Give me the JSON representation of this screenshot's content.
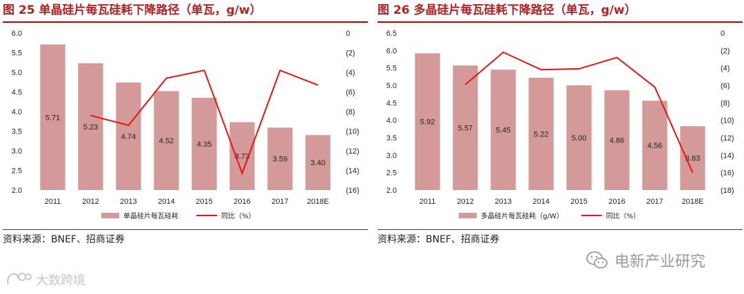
{
  "charts": [
    {
      "figure_title": "图 25 单晶硅片每瓦硅耗下降路径（单瓦，g/w）",
      "source": "资料来源：BNEF、招商证券",
      "legend": {
        "bar": "单晶硅片每瓦硅耗",
        "line": "同比（%）"
      }
    },
    {
      "figure_title": "图 26 多晶硅片每瓦硅耗下降路径（单瓦，g/w）",
      "source": "资料来源：BNEF、招商证券",
      "legend": {
        "bar": "多晶硅片每瓦硅耗（g/W）",
        "line": "同比（%）"
      }
    }
  ],
  "wechat": {
    "icon": "wechat-icon",
    "label": "电新产业研究"
  },
  "watermark": {
    "icon": "chat-logo-icon",
    "label": "大数跨境"
  },
  "colors": {
    "bar": "#d49a99",
    "line": "#ee1111",
    "rule": "#c00000",
    "title": "#b22222"
  },
  "chart_data": [
    {
      "type": "bar+line",
      "title": "单晶硅片每瓦硅耗下降路径（单瓦，g/w）",
      "categories": [
        "2011",
        "2012",
        "2013",
        "2014",
        "2015",
        "2016",
        "2017",
        "2018E"
      ],
      "series": [
        {
          "name": "单晶硅片每瓦硅耗",
          "type": "bar",
          "axis": "left",
          "values": [
            5.71,
            5.23,
            4.74,
            4.52,
            4.35,
            3.73,
            3.59,
            3.4
          ],
          "labels": [
            "5.71",
            "5.23",
            "4.74",
            "4.52",
            "4.35",
            "3.73",
            "3.59",
            "3.40"
          ]
        },
        {
          "name": "同比（%）",
          "type": "line",
          "axis": "right",
          "values": [
            null,
            -8.4,
            -9.4,
            -4.6,
            -3.8,
            -14.3,
            -3.8,
            -5.3
          ]
        }
      ],
      "y_left": {
        "min": 2.0,
        "max": 6.0,
        "step": 0.5,
        "ticks": [
          "6.0",
          "5.5",
          "5.0",
          "4.5",
          "4.0",
          "3.5",
          "3.0",
          "2.5",
          "2.0"
        ]
      },
      "y_right": {
        "min": -16,
        "max": 0,
        "step": 2,
        "ticks": [
          "0",
          "(2)",
          "(4)",
          "(6)",
          "(8)",
          "(10)",
          "(12)",
          "(14)",
          "(16)"
        ]
      }
    },
    {
      "type": "bar+line",
      "title": "多晶硅片每瓦硅耗下降路径（单瓦，g/w）",
      "categories": [
        "2011",
        "2012",
        "2013",
        "2014",
        "2015",
        "2016",
        "2017",
        "2018E"
      ],
      "series": [
        {
          "name": "多晶硅片每瓦硅耗（g/W）",
          "type": "bar",
          "axis": "left",
          "values": [
            5.92,
            5.57,
            5.45,
            5.22,
            5.0,
            4.86,
            4.56,
            3.83
          ],
          "labels": [
            "5.92",
            "5.57",
            "5.45",
            "5.22",
            "5.00",
            "4.86",
            "4.56",
            "3.83"
          ]
        },
        {
          "name": "同比（%）",
          "type": "line",
          "axis": "right",
          "values": [
            null,
            -5.9,
            -2.2,
            -4.2,
            -4.1,
            -2.8,
            -6.2,
            -16.0
          ]
        }
      ],
      "y_left": {
        "min": 2.0,
        "max": 6.5,
        "step": 0.5,
        "ticks": [
          "6.5",
          "6.0",
          "5.5",
          "5.0",
          "4.5",
          "4.0",
          "3.5",
          "3.0",
          "2.5",
          "2.0"
        ]
      },
      "y_right": {
        "min": -18,
        "max": 0,
        "step": 2,
        "ticks": [
          "0",
          "(2)",
          "(4)",
          "(6)",
          "(8)",
          "(10)",
          "(12)",
          "(14)",
          "(16)",
          "(18)"
        ]
      }
    }
  ]
}
